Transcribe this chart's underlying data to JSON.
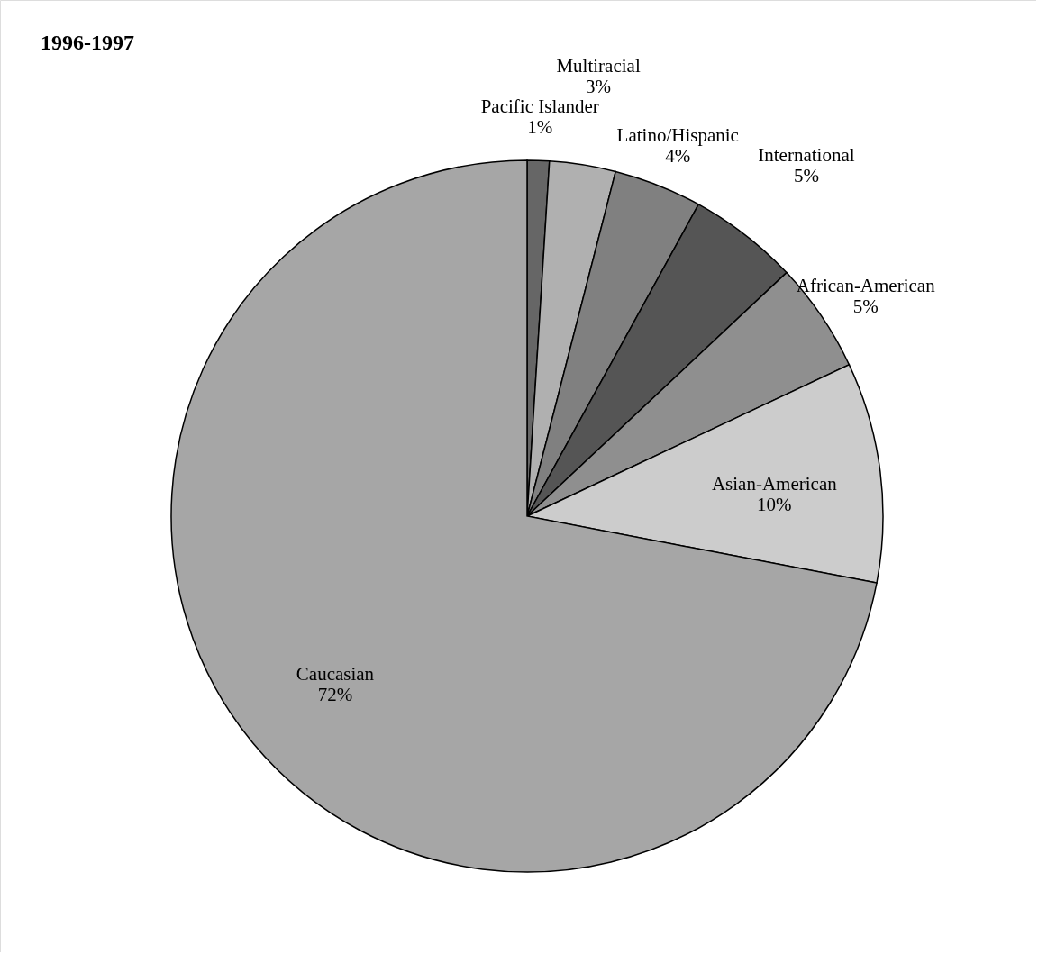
{
  "chart_data": {
    "type": "pie",
    "title": "1996-1997",
    "categories": [
      "Pacific Islander",
      "Multiracial",
      "Latino/Hispanic",
      "International",
      "African-American",
      "Asian-American",
      "Caucasian"
    ],
    "values": [
      1,
      3,
      4,
      5,
      5,
      10,
      72
    ],
    "value_labels": [
      "1%",
      "3%",
      "4%",
      "5%",
      "5%",
      "10%",
      "72%"
    ],
    "colors": [
      "#666666",
      "#b0b0b0",
      "#808080",
      "#555555",
      "#8f8f8f",
      "#cccccc",
      "#a6a6a6"
    ],
    "legend": false
  }
}
